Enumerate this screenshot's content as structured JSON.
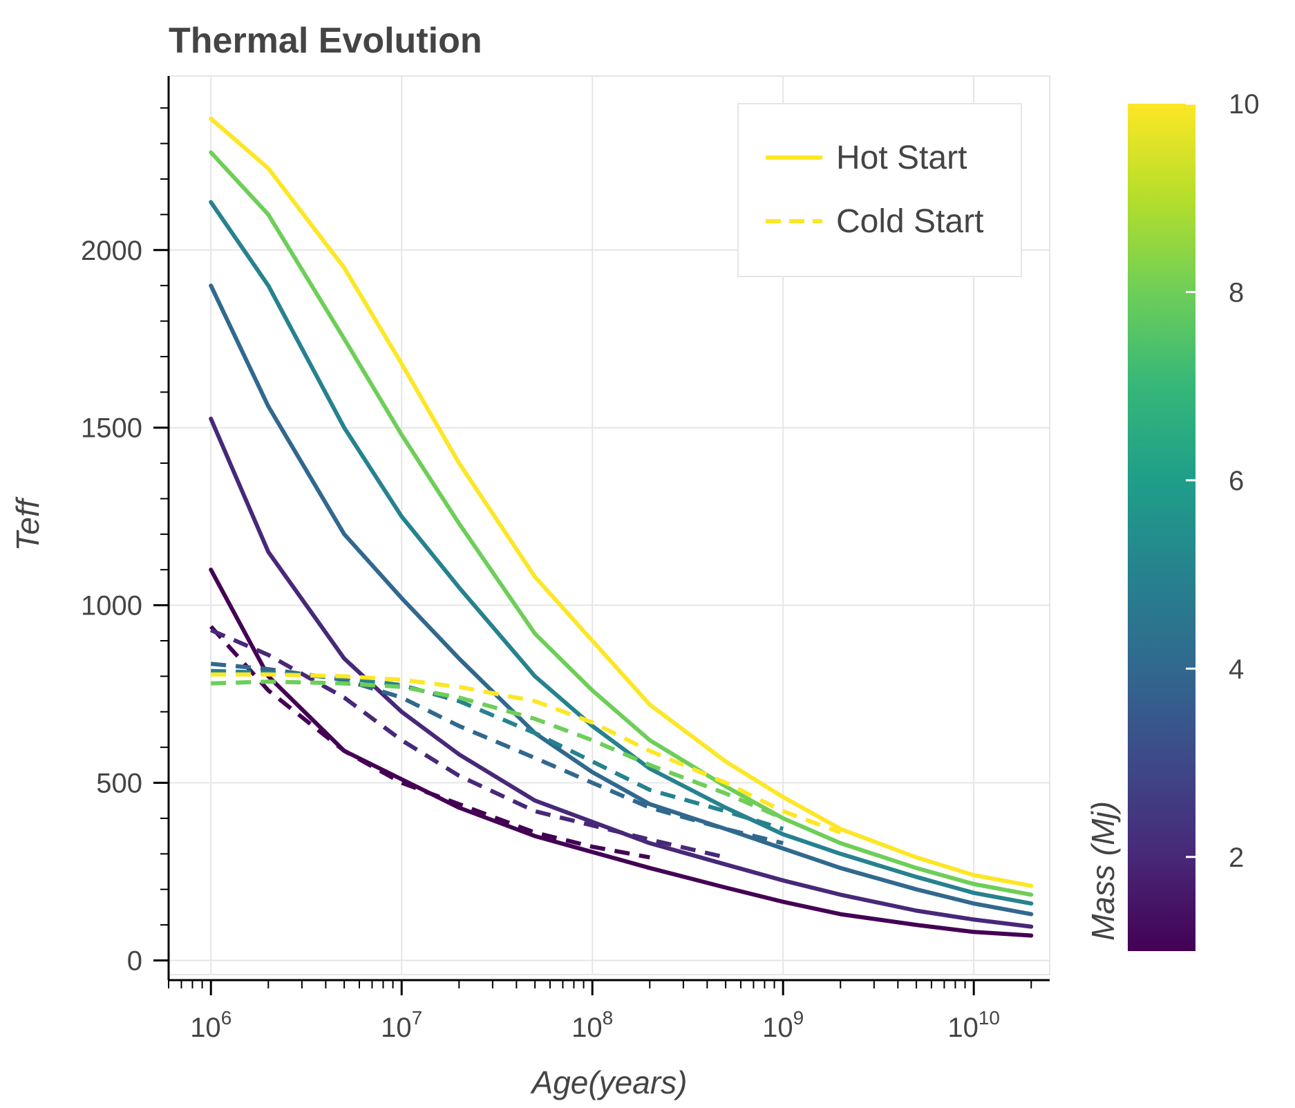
{
  "chart_data": {
    "type": "line",
    "title": "Thermal Evolution",
    "xlabel": "Age(years)",
    "ylabel": "Teff",
    "x_scale": "log",
    "xlim": [
      600000,
      25000000000
    ],
    "ylim": [
      -40,
      2490
    ],
    "x_ticks": [
      1000000,
      10000000,
      100000000,
      1000000000,
      10000000000
    ],
    "x_tick_labels": [
      {
        "base": "10",
        "exp": "6"
      },
      {
        "base": "10",
        "exp": "7"
      },
      {
        "base": "10",
        "exp": "8"
      },
      {
        "base": "10",
        "exp": "9"
      },
      {
        "base": "10",
        "exp": "10"
      }
    ],
    "y_ticks": [
      0,
      500,
      1000,
      1500,
      2000
    ],
    "y_tick_labels": [
      "0",
      "500",
      "1000",
      "1500",
      "2000"
    ],
    "grid": true,
    "legend": {
      "position": "top-right",
      "entries": [
        {
          "label": "Hot Start",
          "style": "solid",
          "color": "#fde725"
        },
        {
          "label": "Cold Start",
          "style": "dashed",
          "color": "#fde725"
        }
      ]
    },
    "colorbar": {
      "label": "Mass (Mj)",
      "min": 1,
      "max": 10,
      "ticks": [
        2,
        4,
        6,
        8,
        10
      ],
      "tick_labels": [
        "2",
        "4",
        "6",
        "8",
        "10"
      ],
      "colormap": [
        "#440154",
        "#482878",
        "#3e4989",
        "#31688e",
        "#26828e",
        "#1f9e89",
        "#35b779",
        "#6ece58",
        "#b5de2b",
        "#fde725"
      ]
    },
    "series": [
      {
        "name": "Hot Start",
        "mass": 1,
        "color": "#440154",
        "style": "solid",
        "x": [
          1000000,
          2000000,
          5000000,
          10000000,
          20000000,
          50000000,
          100000000,
          200000000,
          500000000,
          1000000000,
          2000000000,
          5000000000,
          10000000000,
          20000000000
        ],
        "y": [
          1100,
          800,
          590,
          510,
          430,
          350,
          305,
          260,
          205,
          165,
          130,
          100,
          80,
          70
        ]
      },
      {
        "name": "Hot Start",
        "mass": 2.5,
        "color": "#482878",
        "style": "solid",
        "x": [
          1000000,
          2000000,
          5000000,
          10000000,
          20000000,
          50000000,
          100000000,
          200000000,
          500000000,
          1000000000,
          2000000000,
          5000000000,
          10000000000,
          20000000000
        ],
        "y": [
          1525,
          1150,
          850,
          700,
          580,
          450,
          390,
          330,
          270,
          225,
          185,
          140,
          115,
          95
        ]
      },
      {
        "name": "Hot Start",
        "mass": 4,
        "color": "#31688e",
        "style": "solid",
        "x": [
          1000000,
          2000000,
          5000000,
          10000000,
          20000000,
          50000000,
          100000000,
          200000000,
          500000000,
          1000000000,
          2000000000,
          5000000000,
          10000000000,
          20000000000
        ],
        "y": [
          1900,
          1560,
          1200,
          1020,
          850,
          640,
          530,
          440,
          370,
          315,
          260,
          200,
          160,
          130
        ]
      },
      {
        "name": "Hot Start",
        "mass": 6,
        "color": "#26828e",
        "style": "solid",
        "x": [
          1000000,
          2000000,
          5000000,
          10000000,
          20000000,
          50000000,
          100000000,
          200000000,
          500000000,
          1000000000,
          2000000000,
          5000000000,
          10000000000,
          20000000000
        ],
        "y": [
          2135,
          1900,
          1500,
          1250,
          1050,
          800,
          660,
          540,
          430,
          355,
          300,
          235,
          190,
          160
        ]
      },
      {
        "name": "Hot Start",
        "mass": 8,
        "color": "#6ece58",
        "style": "solid",
        "x": [
          1000000,
          2000000,
          5000000,
          10000000,
          20000000,
          50000000,
          100000000,
          200000000,
          500000000,
          1000000000,
          2000000000,
          5000000000,
          10000000000,
          20000000000
        ],
        "y": [
          2275,
          2100,
          1750,
          1480,
          1230,
          920,
          760,
          620,
          490,
          400,
          330,
          260,
          215,
          185
        ]
      },
      {
        "name": "Hot Start",
        "mass": 10,
        "color": "#fde725",
        "style": "solid",
        "x": [
          1000000,
          2000000,
          5000000,
          10000000,
          20000000,
          50000000,
          100000000,
          200000000,
          500000000,
          1000000000,
          2000000000,
          5000000000,
          10000000000,
          20000000000
        ],
        "y": [
          2370,
          2230,
          1950,
          1680,
          1400,
          1080,
          900,
          720,
          560,
          460,
          370,
          290,
          240,
          210
        ]
      },
      {
        "name": "Cold Start",
        "mass": 1,
        "color": "#440154",
        "style": "dashed",
        "x": [
          1000000,
          2000000,
          5000000,
          10000000,
          20000000,
          50000000,
          100000000,
          200000000
        ],
        "y": [
          940,
          760,
          590,
          500,
          440,
          360,
          320,
          290
        ]
      },
      {
        "name": "Cold Start",
        "mass": 2.5,
        "color": "#482878",
        "style": "dashed",
        "x": [
          1000000,
          2000000,
          5000000,
          10000000,
          20000000,
          50000000,
          100000000,
          200000000,
          500000000
        ],
        "y": [
          930,
          860,
          740,
          620,
          520,
          420,
          380,
          340,
          290
        ]
      },
      {
        "name": "Cold Start",
        "mass": 4,
        "color": "#31688e",
        "style": "dashed",
        "x": [
          1000000,
          2000000,
          5000000,
          10000000,
          20000000,
          50000000,
          100000000,
          200000000,
          500000000,
          1000000000
        ],
        "y": [
          835,
          820,
          790,
          740,
          660,
          570,
          500,
          430,
          370,
          330
        ]
      },
      {
        "name": "Cold Start",
        "mass": 6,
        "color": "#26828e",
        "style": "dashed",
        "x": [
          1000000,
          2000000,
          5000000,
          10000000,
          20000000,
          50000000,
          100000000,
          200000000,
          500000000,
          1000000000
        ],
        "y": [
          815,
          810,
          795,
          775,
          730,
          640,
          560,
          480,
          420,
          370
        ]
      },
      {
        "name": "Cold Start",
        "mass": 8,
        "color": "#6ece58",
        "style": "dashed",
        "x": [
          1000000,
          2000000,
          5000000,
          10000000,
          20000000,
          50000000,
          100000000,
          200000000,
          500000000,
          1000000000
        ],
        "y": [
          780,
          785,
          780,
          770,
          740,
          680,
          620,
          550,
          470,
          400
        ]
      },
      {
        "name": "Cold Start",
        "mass": 10,
        "color": "#fde725",
        "style": "dashed",
        "x": [
          1000000,
          2000000,
          5000000,
          10000000,
          20000000,
          50000000,
          100000000,
          200000000,
          500000000,
          1000000000,
          2000000000
        ],
        "y": [
          805,
          805,
          800,
          790,
          770,
          730,
          670,
          590,
          500,
          420,
          360
        ]
      }
    ]
  }
}
